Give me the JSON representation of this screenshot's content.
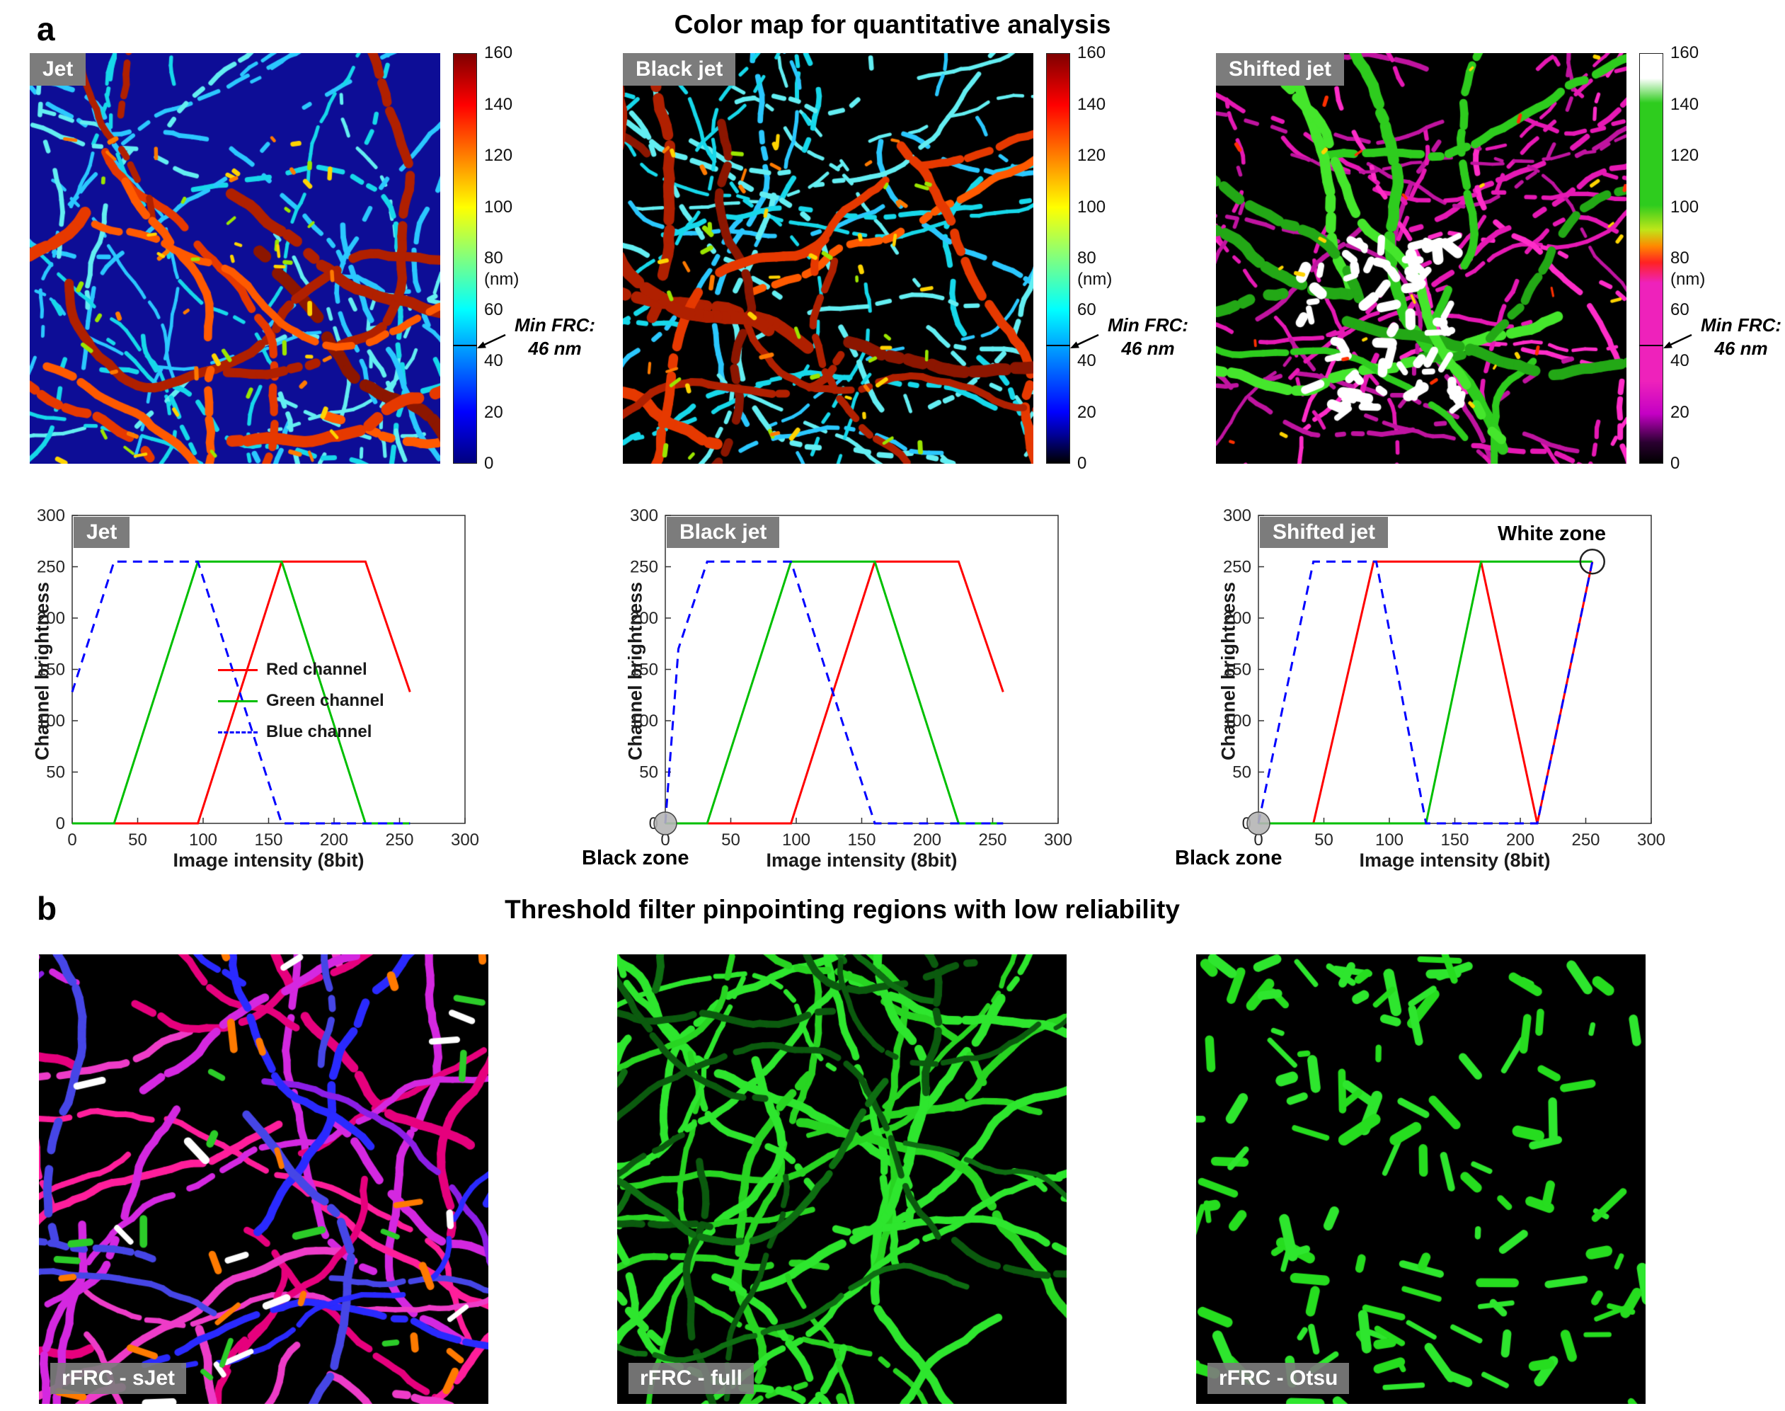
{
  "panel_a": {
    "letter": "a",
    "title": "Color map for quantitative analysis",
    "images": [
      {
        "label": "Jet",
        "colormap": "jet",
        "palette": {
          "bg": "#0d0d96",
          "filaments": [
            "#17d8ea",
            "#2bc8ff",
            "#63eef2"
          ],
          "bundles": [
            "#e63900",
            "#b02000",
            "#ff5a00",
            "#8c1600"
          ],
          "accents": [
            "#ffd400",
            "#9be600",
            "#ff7a00"
          ]
        }
      },
      {
        "label": "Black jet",
        "colormap": "black_jet",
        "palette": {
          "bg": "#000000",
          "filaments": [
            "#17d8ea",
            "#2bc8ff",
            "#63eef2"
          ],
          "bundles": [
            "#e63900",
            "#b02000",
            "#ff5a00",
            "#8c1600"
          ],
          "accents": [
            "#ffd400",
            "#9be600",
            "#ff7a00"
          ]
        }
      },
      {
        "label": "Shifted jet",
        "colormap": "shifted_jet",
        "palette": {
          "bg": "#000000",
          "filaments": [
            "#e619b4",
            "#ff2dc8",
            "#c014a0"
          ],
          "bundles": [
            "#2ecc1e",
            "#23a816",
            "#45e62c"
          ],
          "accents": [
            "#ffffff",
            "#ff3000",
            "#ffd400"
          ]
        }
      }
    ],
    "colorbar": {
      "ticks": [
        0,
        20,
        40,
        60,
        80,
        100,
        120,
        140,
        160
      ],
      "max": 160,
      "unit": "(nm)",
      "min_frc_line1": "Min FRC:",
      "min_frc_line2": "46 nm",
      "min_frc_value": 46,
      "gradients": {
        "jet": [
          [
            0,
            "#00007f"
          ],
          [
            12.5,
            "#0000ff"
          ],
          [
            37.5,
            "#00ffff"
          ],
          [
            62.5,
            "#ffff00"
          ],
          [
            87.5,
            "#ff0000"
          ],
          [
            100,
            "#7f0000"
          ]
        ],
        "black_jet": [
          [
            0,
            "#000000"
          ],
          [
            7,
            "#000099"
          ],
          [
            12.5,
            "#0000ff"
          ],
          [
            37.5,
            "#00ffff"
          ],
          [
            62.5,
            "#ffff00"
          ],
          [
            87.5,
            "#ff0000"
          ],
          [
            100,
            "#7f0000"
          ]
        ],
        "shifted_jet": [
          [
            0,
            "#000000"
          ],
          [
            5,
            "#2a0030"
          ],
          [
            12,
            "#c400c4"
          ],
          [
            20,
            "#ee22bb"
          ],
          [
            44,
            "#ee22bb"
          ],
          [
            49,
            "#ff2222"
          ],
          [
            53,
            "#ff8800"
          ],
          [
            57,
            "#bfe619"
          ],
          [
            63,
            "#2ecc1e"
          ],
          [
            88,
            "#2ecc1e"
          ],
          [
            94,
            "#ffffff"
          ],
          [
            100,
            "#ffffff"
          ]
        ]
      }
    }
  },
  "chart_data": [
    {
      "type": "line",
      "title": "Jet",
      "xlabel": "Image intensity (8bit)",
      "ylabel": "Channel brightness",
      "xlim": [
        0,
        300
      ],
      "ylim": [
        0,
        300
      ],
      "xticks": [
        0,
        50,
        100,
        150,
        200,
        250,
        300
      ],
      "yticks": [
        0,
        50,
        100,
        150,
        200,
        250,
        300
      ],
      "legend_position": "center",
      "series": [
        {
          "name": "Red channel",
          "color": "#ff0000",
          "dash": false,
          "points": [
            [
              0,
              0
            ],
            [
              96,
              0
            ],
            [
              160,
              255
            ],
            [
              224,
              255
            ],
            [
              258,
              128
            ]
          ]
        },
        {
          "name": "Green channel",
          "color": "#00bf00",
          "dash": false,
          "points": [
            [
              0,
              0
            ],
            [
              32,
              0
            ],
            [
              96,
              255
            ],
            [
              160,
              255
            ],
            [
              224,
              0
            ],
            [
              258,
              0
            ]
          ]
        },
        {
          "name": "Blue channel",
          "color": "#0000ff",
          "dash": true,
          "points": [
            [
              0,
              128
            ],
            [
              32,
              255
            ],
            [
              96,
              255
            ],
            [
              160,
              0
            ],
            [
              258,
              0
            ]
          ]
        }
      ],
      "annotations": []
    },
    {
      "type": "line",
      "title": "Black jet",
      "xlabel": "Image intensity (8bit)",
      "ylabel": "Channel brightness",
      "xlim": [
        0,
        300
      ],
      "ylim": [
        0,
        300
      ],
      "xticks": [
        0,
        50,
        100,
        150,
        200,
        250,
        300
      ],
      "yticks": [
        0,
        50,
        100,
        150,
        200,
        250,
        300
      ],
      "series": [
        {
          "name": "Red channel",
          "color": "#ff0000",
          "dash": false,
          "points": [
            [
              0,
              0
            ],
            [
              96,
              0
            ],
            [
              160,
              255
            ],
            [
              224,
              255
            ],
            [
              258,
              128
            ]
          ]
        },
        {
          "name": "Green channel",
          "color": "#00bf00",
          "dash": false,
          "points": [
            [
              0,
              0
            ],
            [
              32,
              0
            ],
            [
              96,
              255
            ],
            [
              160,
              255
            ],
            [
              224,
              0
            ],
            [
              258,
              0
            ]
          ]
        },
        {
          "name": "Blue channel",
          "color": "#0000ff",
          "dash": true,
          "points": [
            [
              0,
              0
            ],
            [
              10,
              170
            ],
            [
              32,
              255
            ],
            [
              96,
              255
            ],
            [
              160,
              0
            ],
            [
              258,
              0
            ]
          ]
        }
      ],
      "annotations": [
        {
          "type": "black_zone",
          "label": "Black zone",
          "at": [
            0,
            0
          ]
        }
      ]
    },
    {
      "type": "line",
      "title": "Shifted jet",
      "xlabel": "Image intensity (8bit)",
      "ylabel": "Channel brightness",
      "xlim": [
        0,
        300
      ],
      "ylim": [
        0,
        300
      ],
      "xticks": [
        0,
        50,
        100,
        150,
        200,
        250,
        300
      ],
      "yticks": [
        0,
        50,
        100,
        150,
        200,
        250,
        300
      ],
      "series": [
        {
          "name": "Red channel",
          "color": "#ff0000",
          "dash": false,
          "points": [
            [
              0,
              0
            ],
            [
              42,
              0
            ],
            [
              88,
              255
            ],
            [
              170,
              255
            ],
            [
              213,
              0
            ],
            [
              255,
              255
            ]
          ]
        },
        {
          "name": "Green channel",
          "color": "#00bf00",
          "dash": false,
          "points": [
            [
              0,
              0
            ],
            [
              128,
              0
            ],
            [
              170,
              255
            ],
            [
              255,
              255
            ]
          ]
        },
        {
          "name": "Blue channel",
          "color": "#0000ff",
          "dash": true,
          "points": [
            [
              0,
              0
            ],
            [
              42,
              255
            ],
            [
              90,
              255
            ],
            [
              128,
              0
            ],
            [
              213,
              0
            ],
            [
              255,
              255
            ]
          ]
        }
      ],
      "annotations": [
        {
          "type": "black_zone",
          "label": "Black zone",
          "at": [
            0,
            0
          ]
        },
        {
          "type": "white_zone",
          "label": "White zone",
          "at": [
            255,
            255
          ]
        }
      ]
    }
  ],
  "panel_b": {
    "letter": "b",
    "title": "Threshold filter pinpointing regions with low reliability",
    "images": [
      {
        "label": "rFRC - sJet",
        "palette": {
          "bg": "#000000",
          "filaments": [
            "#ff1e9b",
            "#ee3cc8",
            "#e6007d",
            "#d428e0"
          ],
          "secondary": [
            "#2a2aff",
            "#4646e6",
            "#8c1ee6"
          ],
          "accents": [
            "#ff7a00",
            "#2ccc29",
            "#ffffff"
          ]
        }
      },
      {
        "label": "rFRC - full",
        "palette": {
          "bg": "#000000",
          "filaments": [
            "#2ee62e",
            "#28d522"
          ],
          "secondary": [
            "#0e6e12",
            "#0b5a0e"
          ],
          "accents": []
        }
      },
      {
        "label": "rFRC - Otsu",
        "palette": {
          "bg": "#000000",
          "filaments": [
            "#2ee62e",
            "#26dd1f"
          ],
          "secondary": [],
          "accents": []
        }
      }
    ]
  }
}
